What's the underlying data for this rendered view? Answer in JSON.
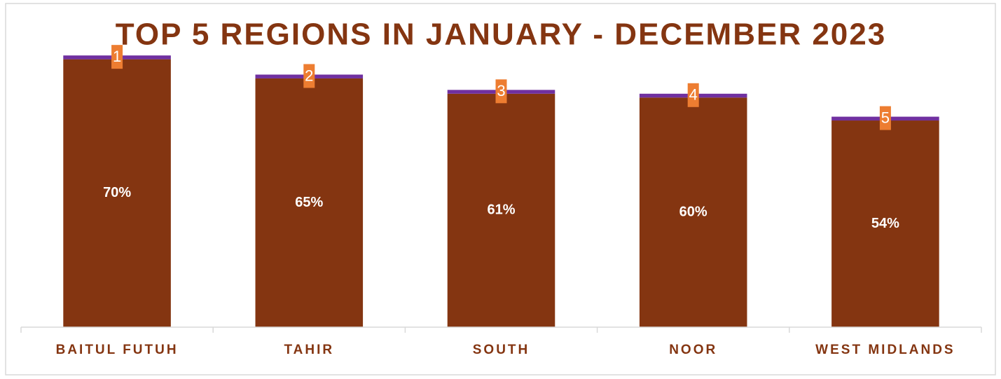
{
  "chart_data": {
    "type": "stacked_bar",
    "title": "TOP 5 REGIONS IN JANUARY - DECEMBER 2023",
    "categories": [
      "BAITUL FUTUH",
      "TAHIR",
      "SOUTH",
      "NOOR",
      "WEST MIDLANDS"
    ],
    "series": [
      {
        "color": "#843511",
        "values": [
          70,
          65,
          61,
          60,
          54
        ],
        "value_labels": [
          "70%",
          "65%",
          "61%",
          "60%",
          "54%"
        ]
      },
      {
        "color": "#7030a0",
        "values": [
          1,
          1,
          1,
          1,
          1
        ]
      }
    ],
    "rank_labels": [
      1,
      2,
      3,
      4,
      5
    ],
    "rank_label_color": "#ed7d31",
    "ylim": [
      0,
      80
    ]
  }
}
